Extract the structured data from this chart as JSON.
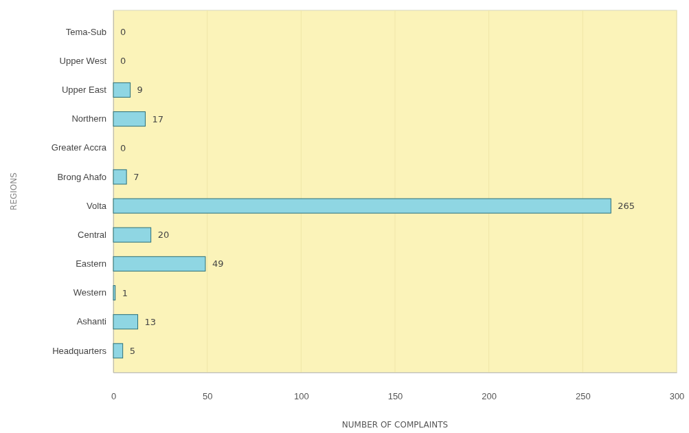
{
  "chart_data": {
    "type": "bar",
    "orientation": "horizontal",
    "xlabel": "NUMBER OF COMPLAINTS",
    "ylabel": "REGIONS",
    "categories": [
      "Tema-Sub",
      "Upper West",
      "Upper East",
      "Northern",
      "Greater Accra",
      "Brong Ahafo",
      "Volta",
      "Central",
      "Eastern",
      "Western",
      "Ashanti",
      "Headquarters"
    ],
    "values": [
      0,
      0,
      9,
      17,
      0,
      7,
      265,
      20,
      49,
      1,
      13,
      5
    ],
    "color": "#8fd6e3",
    "xlim": [
      0,
      300
    ],
    "xticks": [
      0,
      50,
      100,
      150,
      200,
      250,
      300
    ],
    "grid": "x",
    "data_labels": true
  }
}
